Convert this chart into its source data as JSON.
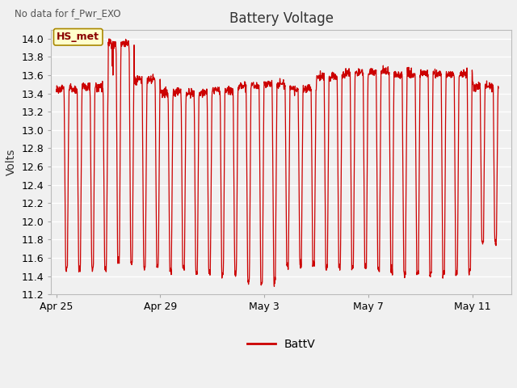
{
  "title": "Battery Voltage",
  "top_left_text": "No data for f_Pwr_EXO",
  "ylabel": "Volts",
  "legend_label": "BattV",
  "legend_line_color": "#cc0000",
  "line_color": "#cc0000",
  "background_color": "#f0f0f0",
  "plot_bg_color": "#f0f0f0",
  "ylim": [
    11.2,
    14.1
  ],
  "yticks": [
    11.2,
    11.4,
    11.6,
    11.8,
    12.0,
    12.2,
    12.4,
    12.6,
    12.8,
    13.0,
    13.2,
    13.4,
    13.6,
    13.8,
    14.0
  ],
  "xtick_labels": [
    "Apr 25",
    "Apr 29",
    "May 3",
    "May 7",
    "May 11"
  ],
  "xtick_positions": [
    0,
    4,
    8,
    12,
    16
  ],
  "inset_label": "HS_met",
  "inset_bg": "#ffffcc",
  "inset_border": "#aa8800",
  "n_days": 17,
  "xlim_end": 17.5
}
